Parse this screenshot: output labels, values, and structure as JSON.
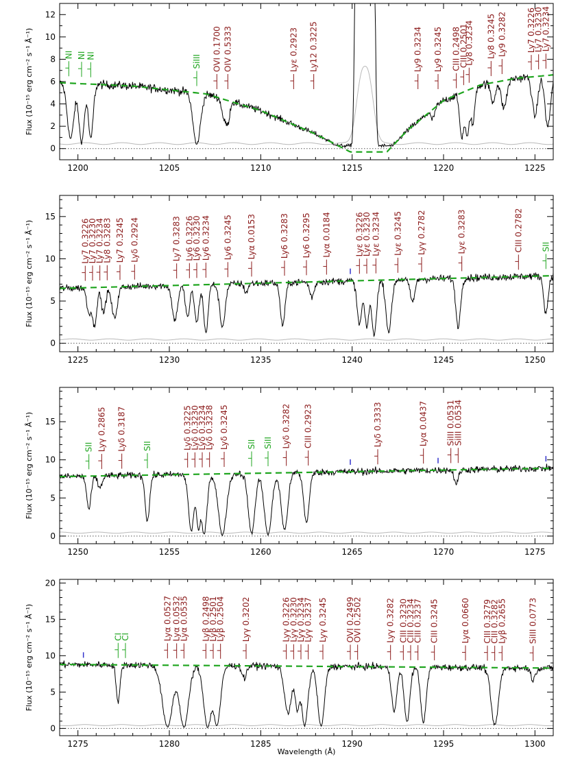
{
  "figure": {
    "xlabel": "Wavelength (Å)",
    "ylabel": "Flux (10⁻¹⁵ erg cm⁻² s⁻¹ Å⁻¹)",
    "colors": {
      "data": "#000000",
      "error": "#b8b8b8",
      "continuum": "#1fa51f",
      "ism_label": "#1fa51f",
      "igm_label": "#8b1a1a",
      "marker_blue": "#3333cc",
      "zero_line": "#555555"
    }
  },
  "chart_data": [
    {
      "type": "line",
      "panel": 1,
      "xlim": [
        1199,
        1226
      ],
      "ylim": [
        -1,
        13
      ],
      "xticks": [
        1200,
        1205,
        1210,
        1215,
        1220,
        1225
      ],
      "yticks": [
        0,
        2,
        4,
        6,
        8,
        10,
        12
      ],
      "continuum": [
        [
          1199,
          5.9
        ],
        [
          1203,
          5.6
        ],
        [
          1207,
          4.9
        ],
        [
          1210,
          3.4
        ],
        [
          1213,
          1.3
        ],
        [
          1214.9,
          -0.3
        ],
        [
          1216.9,
          -0.3
        ],
        [
          1218,
          1.6
        ],
        [
          1220,
          4.3
        ],
        [
          1222,
          5.7
        ],
        [
          1224,
          6.3
        ],
        [
          1226,
          6.6
        ]
      ],
      "geocoronal_peak": {
        "center": 1215.7,
        "width": 1.1,
        "height_data": 40,
        "height_error": 7
      },
      "absorption": [
        {
          "w": 1199.6,
          "depth": 0.85,
          "sigma": 0.18
        },
        {
          "w": 1200.2,
          "depth": 0.9,
          "sigma": 0.15
        },
        {
          "w": 1200.7,
          "depth": 0.85,
          "sigma": 0.13
        },
        {
          "w": 1206.5,
          "depth": 0.93,
          "sigma": 0.2
        },
        {
          "w": 1208.0,
          "depth": 0.4,
          "sigma": 0.12
        },
        {
          "w": 1208.2,
          "depth": 0.45,
          "sigma": 0.1
        },
        {
          "w": 1219.4,
          "depth": 0.25,
          "sigma": 0.1
        },
        {
          "w": 1221.0,
          "depth": 0.8,
          "sigma": 0.12
        },
        {
          "w": 1221.3,
          "depth": 0.8,
          "sigma": 0.12
        },
        {
          "w": 1221.6,
          "depth": 0.6,
          "sigma": 0.1
        },
        {
          "w": 1222.7,
          "depth": 0.3,
          "sigma": 0.12
        },
        {
          "w": 1223.3,
          "depth": 0.4,
          "sigma": 0.15
        },
        {
          "w": 1225.0,
          "depth": 0.55,
          "sigma": 0.15
        },
        {
          "w": 1225.7,
          "depth": 0.7,
          "sigma": 0.15
        }
      ],
      "lines": [
        {
          "w": 1199.5,
          "label": "NI",
          "kind": "ism"
        },
        {
          "w": 1200.2,
          "label": "NI",
          "kind": "ism"
        },
        {
          "w": 1200.7,
          "label": "NI",
          "kind": "ism"
        },
        {
          "w": 1206.5,
          "label": "SiIII",
          "kind": "ism"
        },
        {
          "w": 1207.6,
          "label": "OVI 0.1700",
          "kind": "igm"
        },
        {
          "w": 1208.2,
          "label": "OIV 0.5333",
          "kind": "igm"
        },
        {
          "w": 1211.8,
          "label": "Lyε 0.2923",
          "kind": "igm"
        },
        {
          "w": 1212.9,
          "label": "Ly12 0.3225",
          "kind": "igm"
        },
        {
          "w": 1218.6,
          "label": "Ly9 0.3234",
          "kind": "igm"
        },
        {
          "w": 1219.7,
          "label": "Ly9 0.3245",
          "kind": "igm"
        },
        {
          "w": 1220.7,
          "label": "CIII 0.2498",
          "kind": "igm"
        },
        {
          "w": 1221.1,
          "label": "CIII 0.2501",
          "kind": "igm"
        },
        {
          "w": 1221.4,
          "label": "Ly8 0.3234",
          "kind": "igm"
        },
        {
          "w": 1222.6,
          "label": "Ly8 0.3245",
          "kind": "igm"
        },
        {
          "w": 1223.2,
          "label": "Ly9 0.3282",
          "kind": "igm"
        },
        {
          "w": 1224.8,
          "label": "Ly7 0.3226",
          "kind": "igm"
        },
        {
          "w": 1225.2,
          "label": "Ly7 0.3230",
          "kind": "igm"
        },
        {
          "w": 1225.6,
          "label": "Ly7 0.3234",
          "kind": "igm"
        }
      ]
    },
    {
      "type": "line",
      "panel": 2,
      "xlim": [
        1224,
        1251
      ],
      "ylim": [
        -1,
        17.5
      ],
      "xticks": [
        1225,
        1230,
        1235,
        1240,
        1245,
        1250
      ],
      "yticks": [
        0,
        5,
        10,
        15
      ],
      "continuum": [
        [
          1224,
          6.5
        ],
        [
          1251,
          8.0
        ]
      ],
      "absorption": [
        {
          "w": 1225.6,
          "depth": 0.45,
          "sigma": 0.12
        },
        {
          "w": 1225.9,
          "depth": 0.7,
          "sigma": 0.12
        },
        {
          "w": 1226.4,
          "depth": 0.45,
          "sigma": 0.12
        },
        {
          "w": 1227.0,
          "depth": 0.55,
          "sigma": 0.15
        },
        {
          "w": 1230.3,
          "depth": 0.6,
          "sigma": 0.15
        },
        {
          "w": 1231.0,
          "depth": 0.55,
          "sigma": 0.12
        },
        {
          "w": 1231.5,
          "depth": 0.65,
          "sigma": 0.12
        },
        {
          "w": 1232.0,
          "depth": 0.82,
          "sigma": 0.12
        },
        {
          "w": 1232.9,
          "depth": 0.72,
          "sigma": 0.15
        },
        {
          "w": 1234.2,
          "depth": 0.15,
          "sigma": 0.1
        },
        {
          "w": 1236.2,
          "depth": 0.7,
          "sigma": 0.13
        },
        {
          "w": 1237.8,
          "depth": 0.25,
          "sigma": 0.12
        },
        {
          "w": 1240.4,
          "depth": 0.7,
          "sigma": 0.13
        },
        {
          "w": 1240.8,
          "depth": 0.75,
          "sigma": 0.12
        },
        {
          "w": 1241.2,
          "depth": 0.88,
          "sigma": 0.13
        },
        {
          "w": 1242.0,
          "depth": 0.82,
          "sigma": 0.15
        },
        {
          "w": 1243.3,
          "depth": 0.35,
          "sigma": 0.13
        },
        {
          "w": 1245.8,
          "depth": 0.75,
          "sigma": 0.13
        },
        {
          "w": 1250.6,
          "depth": 0.55,
          "sigma": 0.12
        }
      ],
      "blue_ticks": [
        1239.9
      ],
      "lines": [
        {
          "w": 1225.4,
          "label": "Ly7 0.3226",
          "kind": "igm"
        },
        {
          "w": 1225.8,
          "label": "Ly7 0.3230",
          "kind": "igm"
        },
        {
          "w": 1226.2,
          "label": "Ly7 0.3234",
          "kind": "igm"
        },
        {
          "w": 1226.6,
          "label": "Ly8 0.3283",
          "kind": "igm"
        },
        {
          "w": 1227.3,
          "label": "Ly7 0.3245",
          "kind": "igm"
        },
        {
          "w": 1228.1,
          "label": "Lyδ 0.2924",
          "kind": "igm"
        },
        {
          "w": 1230.4,
          "label": "Ly7 0.3283",
          "kind": "igm"
        },
        {
          "w": 1231.1,
          "label": "Ly6 0.3226",
          "kind": "igm"
        },
        {
          "w": 1231.5,
          "label": "Ly6 0.3230",
          "kind": "igm"
        },
        {
          "w": 1232.0,
          "label": "Ly6 0.3234",
          "kind": "igm"
        },
        {
          "w": 1233.2,
          "label": "Ly6 0.3245",
          "kind": "igm"
        },
        {
          "w": 1234.5,
          "label": "Lyα 0.0153",
          "kind": "igm"
        },
        {
          "w": 1236.3,
          "label": "Ly6 0.3283",
          "kind": "igm"
        },
        {
          "w": 1237.5,
          "label": "Ly6 0.3295",
          "kind": "igm"
        },
        {
          "w": 1238.6,
          "label": "Lyα 0.0184",
          "kind": "igm"
        },
        {
          "w": 1240.4,
          "label": "Lyε 0.3226",
          "kind": "igm"
        },
        {
          "w": 1240.8,
          "label": "Lyε 0.3230",
          "kind": "igm"
        },
        {
          "w": 1241.3,
          "label": "Lyε 0.3234",
          "kind": "igm"
        },
        {
          "w": 1242.5,
          "label": "Lyε 0.3245",
          "kind": "igm"
        },
        {
          "w": 1243.8,
          "label": "Lyγ 0.2782",
          "kind": "igm"
        },
        {
          "w": 1246.0,
          "label": "Lyε 0.3283",
          "kind": "igm"
        },
        {
          "w": 1249.1,
          "label": "CIII 0.2782",
          "kind": "igm"
        },
        {
          "w": 1250.6,
          "label": "SII",
          "kind": "ism"
        }
      ]
    },
    {
      "type": "line",
      "panel": 3,
      "xlim": [
        1249,
        1276
      ],
      "ylim": [
        -1,
        19.5
      ],
      "xticks": [
        1250,
        1255,
        1260,
        1265,
        1270,
        1275
      ],
      "yticks": [
        0,
        5,
        10,
        15
      ],
      "continuum": [
        [
          1249,
          7.8
        ],
        [
          1276,
          8.9
        ]
      ],
      "absorption": [
        {
          "w": 1250.6,
          "depth": 0.55,
          "sigma": 0.12
        },
        {
          "w": 1251.2,
          "depth": 0.2,
          "sigma": 0.12
        },
        {
          "w": 1253.8,
          "depth": 0.75,
          "sigma": 0.12
        },
        {
          "w": 1256.2,
          "depth": 0.92,
          "sigma": 0.15
        },
        {
          "w": 1256.6,
          "depth": 0.9,
          "sigma": 0.12
        },
        {
          "w": 1256.9,
          "depth": 0.98,
          "sigma": 0.15
        },
        {
          "w": 1257.9,
          "depth": 0.98,
          "sigma": 0.22
        },
        {
          "w": 1259.5,
          "depth": 0.96,
          "sigma": 0.18
        },
        {
          "w": 1260.4,
          "depth": 0.98,
          "sigma": 0.2
        },
        {
          "w": 1261.3,
          "depth": 0.9,
          "sigma": 0.18
        },
        {
          "w": 1262.5,
          "depth": 0.78,
          "sigma": 0.15
        },
        {
          "w": 1270.7,
          "depth": 0.2,
          "sigma": 0.12
        }
      ],
      "blue_ticks": [
        1264.9,
        1269.7,
        1275.6
      ],
      "lines": [
        {
          "w": 1250.6,
          "label": "SII",
          "kind": "ism"
        },
        {
          "w": 1251.3,
          "label": "Lyγ 0.2865",
          "kind": "igm"
        },
        {
          "w": 1252.4,
          "label": "Lyδ 0.3187",
          "kind": "igm"
        },
        {
          "w": 1253.8,
          "label": "SII",
          "kind": "ism"
        },
        {
          "w": 1256.0,
          "label": "Lyδ 0.3225",
          "kind": "igm"
        },
        {
          "w": 1256.4,
          "label": "Lyδ 0.3230",
          "kind": "igm"
        },
        {
          "w": 1256.8,
          "label": "Lyδ 0.3234",
          "kind": "igm"
        },
        {
          "w": 1257.2,
          "label": "Lyδ 0.3238",
          "kind": "igm"
        },
        {
          "w": 1258.0,
          "label": "Lyδ 0.3245",
          "kind": "igm"
        },
        {
          "w": 1259.5,
          "label": "SII",
          "kind": "ism"
        },
        {
          "w": 1260.4,
          "label": "SiII",
          "kind": "ism"
        },
        {
          "w": 1261.4,
          "label": "Lyδ 0.3282",
          "kind": "igm"
        },
        {
          "w": 1262.6,
          "label": "CIII 0.2923",
          "kind": "igm"
        },
        {
          "w": 1266.4,
          "label": "Lyδ 0.3333",
          "kind": "igm"
        },
        {
          "w": 1268.9,
          "label": "Lyα 0.0437",
          "kind": "igm"
        },
        {
          "w": 1270.4,
          "label": "SiIII 0.0531",
          "kind": "igm"
        },
        {
          "w": 1270.8,
          "label": "SiIII 0.0534",
          "kind": "igm"
        }
      ]
    },
    {
      "type": "line",
      "panel": 4,
      "xlim": [
        1274,
        1301
      ],
      "ylim": [
        -1,
        20.5
      ],
      "xticks": [
        1275,
        1280,
        1285,
        1290,
        1295,
        1300
      ],
      "yticks": [
        0,
        5,
        10,
        15,
        20
      ],
      "continuum": [
        [
          1274,
          8.8
        ],
        [
          1301,
          8.3
        ]
      ],
      "absorption": [
        {
          "w": 1277.2,
          "depth": 0.6,
          "sigma": 0.1
        },
        {
          "w": 1279.9,
          "depth": 0.98,
          "sigma": 0.28
        },
        {
          "w": 1280.8,
          "depth": 0.98,
          "sigma": 0.25
        },
        {
          "w": 1282.1,
          "depth": 0.98,
          "sigma": 0.22
        },
        {
          "w": 1282.6,
          "depth": 0.95,
          "sigma": 0.2
        },
        {
          "w": 1284.1,
          "depth": 0.2,
          "sigma": 0.12
        },
        {
          "w": 1286.5,
          "depth": 0.75,
          "sigma": 0.2
        },
        {
          "w": 1287.0,
          "depth": 0.7,
          "sigma": 0.12
        },
        {
          "w": 1287.4,
          "depth": 0.95,
          "sigma": 0.18
        },
        {
          "w": 1288.3,
          "depth": 0.97,
          "sigma": 0.18
        },
        {
          "w": 1292.3,
          "depth": 0.7,
          "sigma": 0.15
        },
        {
          "w": 1293.0,
          "depth": 0.9,
          "sigma": 0.15
        },
        {
          "w": 1293.9,
          "depth": 0.9,
          "sigma": 0.15
        },
        {
          "w": 1297.8,
          "depth": 0.95,
          "sigma": 0.2
        },
        {
          "w": 1299.9,
          "depth": 0.2,
          "sigma": 0.12
        }
      ],
      "blue_ticks": [
        1275.3
      ],
      "lines": [
        {
          "w": 1277.2,
          "label": "CI",
          "kind": "ism"
        },
        {
          "w": 1277.6,
          "label": "CI",
          "kind": "ism"
        },
        {
          "w": 1279.9,
          "label": "Lyα 0.0527",
          "kind": "igm"
        },
        {
          "w": 1280.4,
          "label": "Lyα 0.0532",
          "kind": "igm"
        },
        {
          "w": 1280.8,
          "label": "Lyα 0.0535",
          "kind": "igm"
        },
        {
          "w": 1282.0,
          "label": "Lyβ 0.2498",
          "kind": "igm"
        },
        {
          "w": 1282.4,
          "label": "Lyβ 0.2501",
          "kind": "igm"
        },
        {
          "w": 1282.8,
          "label": "Lyβ 0.2504",
          "kind": "igm"
        },
        {
          "w": 1284.2,
          "label": "Lyγ 0.3202",
          "kind": "igm"
        },
        {
          "w": 1286.4,
          "label": "Lyγ 0.3226",
          "kind": "igm"
        },
        {
          "w": 1286.8,
          "label": "Lyγ 0.3230",
          "kind": "igm"
        },
        {
          "w": 1287.2,
          "label": "Lyγ 0.3234",
          "kind": "igm"
        },
        {
          "w": 1287.6,
          "label": "Lyγ 0.3237",
          "kind": "igm"
        },
        {
          "w": 1288.4,
          "label": "Lyγ 0.3245",
          "kind": "igm"
        },
        {
          "w": 1289.9,
          "label": "OVI 0.2499",
          "kind": "igm"
        },
        {
          "w": 1290.3,
          "label": "OVI 0.2502",
          "kind": "igm"
        },
        {
          "w": 1292.1,
          "label": "Lyγ 0.3282",
          "kind": "igm"
        },
        {
          "w": 1292.8,
          "label": "CIII 0.3230",
          "kind": "igm"
        },
        {
          "w": 1293.2,
          "label": "CIII 0.3234",
          "kind": "igm"
        },
        {
          "w": 1293.6,
          "label": "CIII 0.3237",
          "kind": "igm"
        },
        {
          "w": 1294.5,
          "label": "CIII 0.3245",
          "kind": "igm"
        },
        {
          "w": 1296.2,
          "label": "Lyα 0.0660",
          "kind": "igm"
        },
        {
          "w": 1297.4,
          "label": "CIII 0.3279",
          "kind": "igm"
        },
        {
          "w": 1297.8,
          "label": "CIII 0.3282",
          "kind": "igm"
        },
        {
          "w": 1298.2,
          "label": "Lyβ 0.2655",
          "kind": "igm"
        },
        {
          "w": 1299.9,
          "label": "SiIII 0.0773",
          "kind": "igm"
        }
      ]
    }
  ]
}
